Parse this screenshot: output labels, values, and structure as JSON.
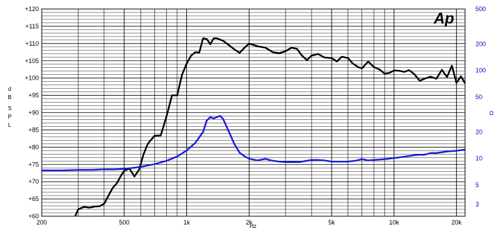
{
  "chart_data": {
    "type": "line",
    "logo": "Ap",
    "xlabel": "Hz",
    "ylabel_left": "dB SPL",
    "ylabel_right": "Ω",
    "x_scale": "log",
    "xlim": [
      200,
      22000
    ],
    "ylim_left": [
      60,
      120
    ],
    "ylim_right": [
      2.2,
      500
    ],
    "y_right_scale": "log",
    "grid": true,
    "x_ticks": [
      {
        "value": 200,
        "label": "200"
      },
      {
        "value": 500,
        "label": "500"
      },
      {
        "value": 1000,
        "label": "1k"
      },
      {
        "value": 2000,
        "label": "2k"
      },
      {
        "value": 5000,
        "label": "5k"
      },
      {
        "value": 10000,
        "label": "10k"
      },
      {
        "value": 20000,
        "label": "20k"
      }
    ],
    "y_left_ticks": [
      {
        "value": 60,
        "label": "+60"
      },
      {
        "value": 65,
        "label": "+65"
      },
      {
        "value": 70,
        "label": "+70"
      },
      {
        "value": 75,
        "label": "+75"
      },
      {
        "value": 80,
        "label": "+80"
      },
      {
        "value": 85,
        "label": "+85"
      },
      {
        "value": 90,
        "label": "+90"
      },
      {
        "value": 95,
        "label": "+95"
      },
      {
        "value": 100,
        "label": "+100"
      },
      {
        "value": 105,
        "label": "+105"
      },
      {
        "value": 110,
        "label": "+110"
      },
      {
        "value": 115,
        "label": "+115"
      },
      {
        "value": 120,
        "label": "+120"
      }
    ],
    "y_right_ticks": [
      {
        "value": 3,
        "label": "3"
      },
      {
        "value": 5,
        "label": "5"
      },
      {
        "value": 10,
        "label": "10"
      },
      {
        "value": 20,
        "label": "20"
      },
      {
        "value": 50,
        "label": "50"
      },
      {
        "value": 100,
        "label": "100"
      },
      {
        "value": 200,
        "label": "200"
      },
      {
        "value": 500,
        "label": "500"
      }
    ],
    "series": [
      {
        "axis": "left",
        "color": "#000000",
        "x": [
          290,
          300,
          320,
          340,
          360,
          380,
          400,
          420,
          440,
          460,
          480,
          500,
          530,
          560,
          590,
          620,
          650,
          700,
          750,
          800,
          850,
          900,
          950,
          1000,
          1050,
          1100,
          1150,
          1200,
          1250,
          1300,
          1350,
          1400,
          1500,
          1600,
          1700,
          1800,
          1900,
          2000,
          2200,
          2400,
          2600,
          2800,
          3000,
          3200,
          3400,
          3600,
          3800,
          4000,
          4300,
          4600,
          5000,
          5300,
          5600,
          6000,
          6300,
          6700,
          7000,
          7500,
          8000,
          8500,
          9000,
          9500,
          10000,
          10600,
          11200,
          11800,
          12500,
          13300,
          14000,
          15000,
          16000,
          17000,
          18000,
          19000,
          20000,
          21000,
          22000
        ],
        "values": [
          60,
          62,
          62.7,
          62.5,
          62.8,
          62.9,
          63.6,
          66,
          68.2,
          69.5,
          71.5,
          73.2,
          73.8,
          71.5,
          73.5,
          78,
          81,
          83.3,
          83.4,
          89,
          95,
          95,
          101,
          104.2,
          106.5,
          107.5,
          107.4,
          111.5,
          111.3,
          109.8,
          111.5,
          111.5,
          110.8,
          109.5,
          108.3,
          107.3,
          108.8,
          110,
          109.2,
          108.8,
          107.5,
          107.2,
          107.8,
          108.8,
          108.5,
          106.5,
          105.2,
          106.5,
          107,
          106,
          105.8,
          104.8,
          106.2,
          105.8,
          104.3,
          103.2,
          102.8,
          104.8,
          103.2,
          102.5,
          101.3,
          101.5,
          102.2,
          102.1,
          101.8,
          102.3,
          101.2,
          99.2,
          99.8,
          100.4,
          99.8,
          102.4,
          100.3,
          103.6,
          98.6,
          100.5,
          98.5
        ]
      },
      {
        "axis": "right",
        "color": "#1a1adc",
        "x": [
          200,
          250,
          300,
          350,
          400,
          450,
          500,
          550,
          600,
          700,
          800,
          900,
          1000,
          1100,
          1200,
          1250,
          1300,
          1350,
          1400,
          1450,
          1500,
          1600,
          1700,
          1800,
          1900,
          2000,
          2200,
          2400,
          2500,
          2600,
          2800,
          3000,
          3500,
          4000,
          4300,
          4600,
          5000,
          5500,
          6000,
          6500,
          7000,
          7500,
          8000,
          9000,
          10000,
          11000,
          12000,
          13000,
          14000,
          15000,
          16000,
          18000,
          20000,
          22000
        ],
        "values": [
          7.3,
          7.3,
          7.4,
          7.4,
          7.5,
          7.5,
          7.6,
          7.8,
          8.0,
          8.6,
          9.4,
          10.5,
          12.3,
          15,
          20,
          27,
          29.5,
          28.5,
          29.5,
          30.5,
          28,
          20,
          14.5,
          11.6,
          10.6,
          9.9,
          9.5,
          9.9,
          9.6,
          9.4,
          9.2,
          9.1,
          9.1,
          9.6,
          9.6,
          9.5,
          9.2,
          9.2,
          9.2,
          9.4,
          9.8,
          9.5,
          9.6,
          9.8,
          10.1,
          10.4,
          10.7,
          11,
          11,
          11.5,
          11.5,
          12,
          12.2,
          12.6
        ]
      }
    ]
  }
}
